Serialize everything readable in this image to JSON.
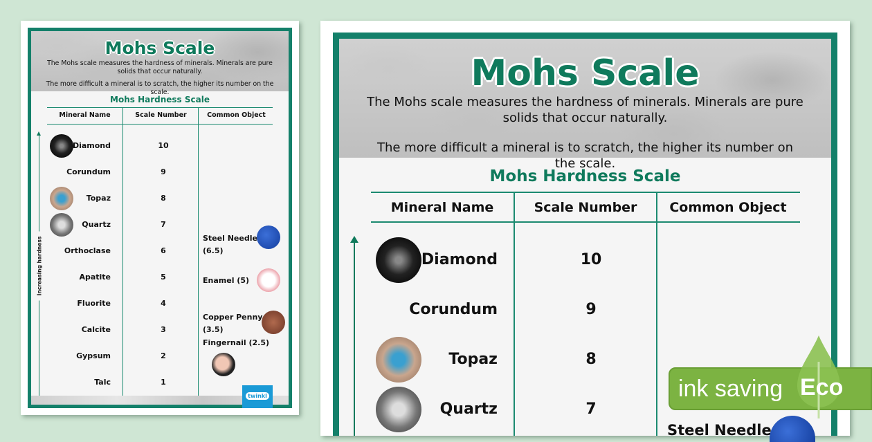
{
  "poster": {
    "title": "Mohs Scale",
    "description_1": "The Mohs scale measures the hardness of minerals. Minerals are pure solids that occur naturally.",
    "description_2": "The more difficult a mineral is to scratch, the higher its number on the scale.",
    "table_title": "Mohs Hardness Scale",
    "headers": [
      "Mineral Name",
      "Scale Number",
      "Common Object"
    ],
    "axis_label": "Increasing hardness",
    "minerals": [
      {
        "name": "Diamond",
        "number": "10"
      },
      {
        "name": "Corundum",
        "number": "9"
      },
      {
        "name": "Topaz",
        "number": "8"
      },
      {
        "name": "Quartz",
        "number": "7"
      },
      {
        "name": "Orthoclase",
        "number": "6"
      },
      {
        "name": "Apatite",
        "number": "5"
      },
      {
        "name": "Fluorite",
        "number": "4"
      },
      {
        "name": "Calcite",
        "number": "3"
      },
      {
        "name": "Gypsum",
        "number": "2"
      },
      {
        "name": "Talc",
        "number": "1"
      }
    ],
    "objects": [
      {
        "name": "Steel Needle",
        "value": "(6.5)"
      },
      {
        "name": "Enamel (5)"
      },
      {
        "name": "Copper Penny",
        "value": "(3.5)"
      },
      {
        "name": "Fingernail (2.5)"
      }
    ],
    "logo": "twinkl"
  },
  "badge": {
    "label": "ink saving",
    "eco": "Eco"
  },
  "colors": {
    "accent": "#0f7a5c",
    "background": "#cfe6d4",
    "badge": "#7cb342"
  }
}
